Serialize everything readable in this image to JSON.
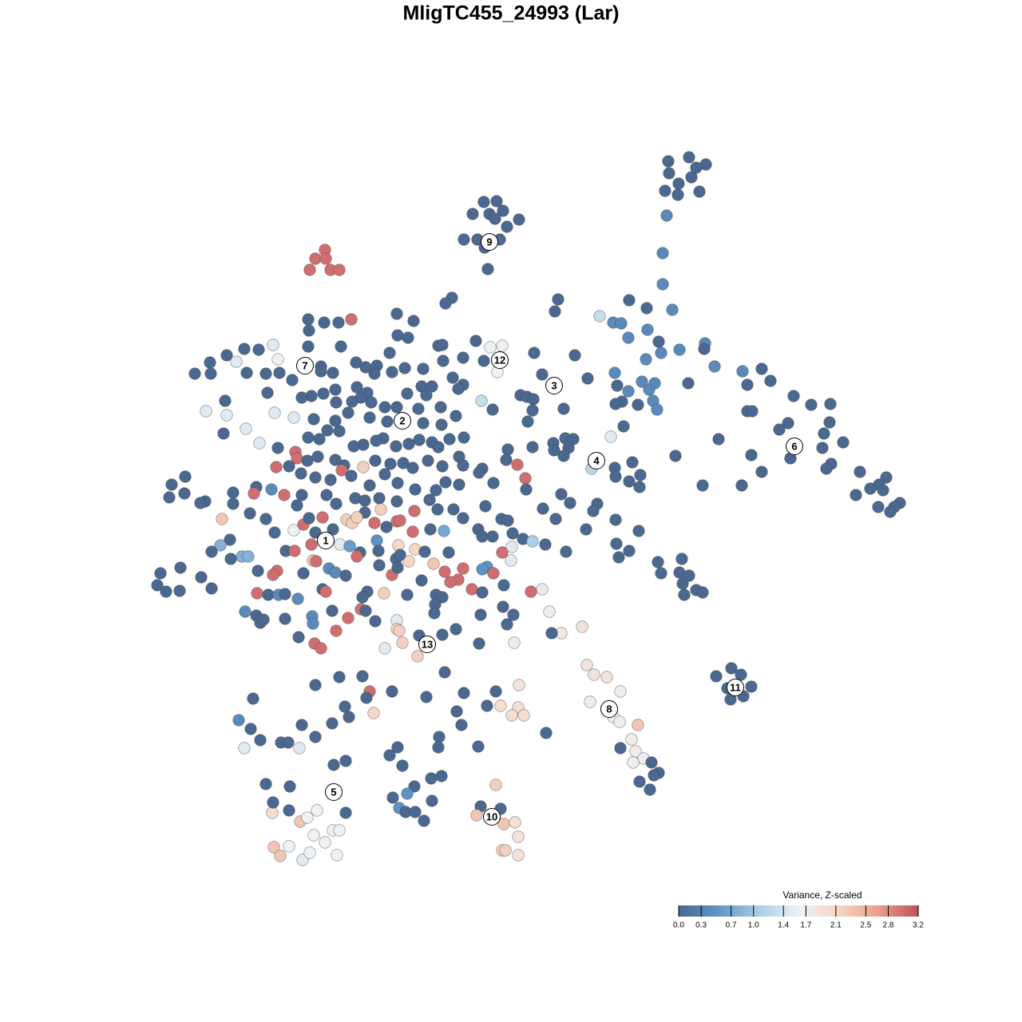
{
  "chart_data": {
    "type": "scatter",
    "title": "MligTC455_24993 (Lar)",
    "x": [
      837,
      863,
      884,
      872,
      838,
      866,
      850,
      833,
      876,
      849,
      835,
      830,
      830,
      606,
      622,
      613,
      592,
      630,
      620,
      650,
      635,
      581,
      598,
      626,
      607,
      611,
      407,
      395,
      408,
      388,
      414,
      425,
      699,
      695,
      566,
      558,
      751,
      768,
      778,
      788,
      810,
      842,
      811,
      787,
      825,
      828,
      851,
      883,
      882,
      809,
      770,
      895,
      930,
      954,
      965,
      936,
      862,
      804,
      820,
      813,
      773,
      787,
      818,
      823,
      779,
      771,
      799,
      994,
      1016,
      1040,
      936,
      942,
      987,
      976,
      1039,
      1032,
      1056,
      1030,
      990,
      941,
      846,
      900,
      880,
      929,
      954,
      1041,
      1035,
      1077,
      1110,
      1101,
      1090,
      1072,
      1106,
      1127,
      1120,
      1115,
      1100,
      765,
      781,
      720,
      736,
      708,
      718,
      693,
      712,
      706,
      741,
      792,
      770,
      771,
      788,
      802,
      801,
      748,
      743,
      714,
      703,
      680,
      696,
      771,
      734,
      800,
      772,
      788,
      775,
      709,
      824,
      854,
      828,
      851,
      863,
      855,
      872,
      880,
      857,
      916,
      897,
      928,
      911,
      941,
      931,
      915,
      735,
      744,
      760,
      777,
      739,
      768,
      776,
      799,
      791,
      796,
      777,
      806,
      793,
      816,
      825,
      819,
      801,
      814,
      729,
      703,
      688,
      679,
      691,
      644,
      650,
      627,
      649,
      656,
      641,
      621,
      610,
      684,
      621,
      602,
      627,
      597,
      631,
      645,
      649,
      629,
      633,
      649,
      341,
      362,
      376,
      385,
      397,
      433,
      417,
      425,
      393,
      407,
      343,
      362,
      351,
      379,
      388,
      422,
      342,
      333,
      363,
      418,
      433,
      352,
      361,
      326,
      314,
      299,
      306,
      317,
      375,
      395,
      378,
      416,
      437,
      432,
      395,
      425,
      454,
      463,
      468,
      459,
      491,
      534,
      557,
      581,
      572,
      578,
      550,
      549,
      599,
      498,
      488,
      504,
      540,
      553,
      519,
      492,
      510,
      541,
      500,
      508,
      520,
      531,
      386,
      406,
      424,
      440,
      387,
      497,
      518,
      498,
      511,
      549,
      554,
      596,
      614,
      629,
      669,
      580,
      606,
      623,
      555,
      488,
      427,
      386,
      342,
      324,
      306,
      284,
      263,
      296,
      348,
      350,
      309,
      333,
      244,
      264,
      366,
      402,
      402,
      417,
      446,
      458,
      472,
      469,
      491,
      507,
      530,
      567,
      580,
      574,
      603,
      617,
      652,
      660,
      668,
      679,
      661,
      706,
      667,
      552,
      571,
      528,
      541,
      534,
      420,
      447,
      460,
      465,
      482,
      497,
      510,
      524,
      452,
      441,
      421,
      405,
      390,
      378,
      335,
      282,
      258,
      284,
      344,
      368,
      308,
      280,
      325,
      393,
      420,
      436,
      463,
      485,
      530,
      553,
      581,
      563,
      541,
      549,
      525,
      512,
      496,
      480,
      471,
      455,
      443,
      425,
      410,
      400,
      386,
      370,
      372,
      348,
      385,
      398,
      420,
      431,
      428,
      455,
      470,
      489,
      505,
      517,
      536,
      554,
      575,
      580,
      604,
      636,
      634,
      648,
      658,
      667,
      694,
      618,
      346,
      362,
      377,
      395,
      414,
      440,
      463,
      482,
      498,
      520,
      546,
      558,
      575,
      600,
      659,
      215,
      232,
      212,
      231,
      257,
      251,
      292,
      292,
      321,
      318,
      340,
      356,
      378,
      372,
      409,
      421,
      445,
      457,
      475,
      497,
      538,
      548,
      568,
      608,
      628,
      636,
      580,
      519,
      477,
      457,
      434,
      441,
      447,
      469,
      484,
      497,
      501,
      517,
      539,
      556,
      599,
      604,
      617,
      642,
      655,
      667,
      683,
      641,
      640,
      629,
      610,
      604,
      618,
      580,
      574,
      557,
      564,
      543,
      528,
      512,
      520,
      499,
      532,
      562,
      591,
      604,
      631,
      665,
      278,
      313,
      333,
      344,
      368,
      380,
      387,
      404,
      417,
      395,
      358,
      390,
      426,
      438,
      451,
      472,
      474,
      447,
      475,
      491,
      496,
      501,
      498,
      392,
      396,
      412,
      420,
      433,
      380,
      369,
      347,
      342,
      323,
      288,
      276,
      303,
      311,
      289,
      265,
      226,
      201,
      197,
      208,
      225,
      252,
      265,
      322,
      336,
      349,
      357,
      373,
      404,
      408,
      460,
      454,
      481,
      510,
      546,
      554,
      545,
      544,
      307,
      321,
      326,
      330,
      357,
      391,
      392,
      416,
      436,
      452,
      458,
      470,
      497,
      497,
      500,
      525,
      504,
      482,
      523,
      374,
      394,
      402,
      421,
      554,
      602,
      630,
      643,
      635,
      600,
      571
    ],
    "y": [
      202,
      197,
      206,
      210,
      217,
      222,
      230,
      239,
      240,
      244,
      270,
      317,
      356,
      253,
      252,
      268,
      268,
      264,
      274,
      275,
      284,
      300,
      300,
      300,
      310,
      337,
      313,
      324,
      324,
      338,
      338,
      338,
      375,
      390,
      373,
      380,
      396,
      404,
      405,
      376,
      386,
      388,
      413,
      423,
      428,
      442,
      438,
      430,
      437,
      450,
      467,
      459,
      465,
      462,
      477,
      482,
      480,
      478,
      480,
      488,
      483,
      490,
      502,
      513,
      503,
      506,
      507,
      496,
      507,
      506,
      515,
      515,
      530,
      538,
      529,
      543,
      554,
      561,
      574,
      570,
      571,
      550,
      608,
      608,
      591,
      581,
      587,
      591,
      598,
      607,
      612,
      620,
      614,
      630,
      635,
      641,
      635,
      547,
      534,
      445,
      474,
      549,
      550,
      555,
      561,
      571,
      587,
      579,
      586,
      597,
      603,
      595,
      610,
      631,
      640,
      630,
      619,
      637,
      650,
      651,
      663,
      665,
      681,
      690,
      698,
      691,
      704,
      700,
      718,
      717,
      721,
      731,
      739,
      742,
      745,
      837,
      847,
      845,
      862,
      860,
      872,
      876,
      833,
      845,
      848,
      866,
      879,
      898,
      904,
      908,
      926,
      941,
      937,
      950,
      955,
      955,
      968,
      971,
      979,
      989,
      785,
      793,
      766,
      738,
      793,
      805,
      858,
      884,
      886,
      896,
      896,
      866,
      884,
      918,
      983,
      1010,
      1013,
      1021,
      1032,
      1030,
      1048,
      1065,
      1065,
      1071,
      1018,
      1015,
      1029,
      1024,
      1015,
      1018,
      1040,
      1040,
      1046,
      1055,
      1061,
      1060,
      1072,
      1077,
      1068,
      1071,
      1005,
      982,
      985,
      958,
      953,
      930,
      930,
      927,
      913,
      902,
      937,
      875,
      937,
      923,
      908,
      906,
      898,
      885,
      858,
      848,
      847,
      866,
      893,
      874,
      866,
      873,
      842,
      868,
      891,
      908,
      923,
      936,
      935,
      936,
      946,
      959,
      975,
      972,
      985,
      999,
      994,
      1003,
      1012,
      1017,
      1017,
      1028,
      400,
      404,
      404,
      400,
      414,
      393,
      402,
      420,
      423,
      433,
      432,
      427,
      435,
      433,
      442,
      448,
      452,
      466,
      452,
      442,
      434,
      434,
      432,
      438,
      437,
      445,
      454,
      453,
      450,
      467,
      467,
      468,
      468,
      468,
      476,
      459,
      465,
      467,
      454,
      460,
      458,
      468,
      466,
      461,
      462,
      473,
      482,
      487,
      502,
      513,
      495,
      497,
      500,
      469,
      528,
      512,
      514,
      510,
      521,
      484,
      484,
      495,
      488,
      485,
      492,
      504,
      510,
      510,
      493,
      512,
      498,
      503,
      504,
      493,
      496,
      498,
      492,
      502,
      515,
      520,
      517,
      523,
      537,
      543,
      555,
      525,
      527,
      517,
      523,
      528,
      530,
      532,
      548,
      550,
      554,
      560,
      551,
      556,
      559,
      549,
      552,
      557,
      559,
      540,
      539,
      550,
      548,
      566,
      574,
      561,
      577,
      572,
      576,
      583,
      589,
      585,
      577,
      581,
      580,
      586,
      577,
      584,
      572,
      583,
      587,
      563,
      576,
      582,
      599,
      560,
      564,
      605,
      585,
      584,
      593,
      598,
      601,
      596,
      608,
      594,
      605,
      613,
      614,
      604,
      607,
      592,
      613,
      607,
      597,
      623,
      618,
      628,
      630,
      617,
      631,
      610,
      618,
      613,
      620,
      620,
      633,
      620,
      631,
      624,
      627,
      624,
      628,
      626,
      638,
      638,
      634,
      650,
      652,
      649,
      640,
      638,
      642,
      651,
      655,
      648,
      655,
      660,
      653,
      652,
      666,
      663,
      665,
      663,
      672,
      672,
      668,
      675,
      678,
      682,
      685,
      702,
      692,
      710,
      713,
      718,
      712,
      726,
      716,
      729,
      706,
      727,
      703,
      688,
      683,
      691,
      692,
      738,
      742,
      733,
      741,
      650,
      643,
      650,
      667,
      664,
      657,
      649,
      648,
      663,
      667,
      690,
      682,
      682,
      684,
      692,
      677,
      690,
      697,
      708,
      720,
      700,
      695,
      711,
      702,
      703,
      712,
      717,
      721,
      718,
      690,
      715,
      720,
      715,
      676,
      683,
      697,
      697,
      700,
      691,
      711,
      718,
      733,
      741,
      740,
      723,
      737,
      743,
      745,
      745,
      744,
      750,
      738,
      741,
      741,
      748,
      743,
      745,
      745,
      748,
      757,
      768,
      766,
      771,
      780,
      776,
      775,
      772,
      781,
      765,
      774,
      763,
      765,
      778,
      777,
      788,
      790,
      796,
      805,
      812,
      822,
      798,
      806,
      812,
      790,
      795,
      770,
      760,
      770,
      782,
      806,
      788
    ],
    "values": [
      0,
      0,
      0,
      0,
      0,
      0,
      0,
      0,
      0,
      0,
      0.4,
      0.4,
      0.4,
      0,
      0,
      0,
      0,
      0,
      0,
      0,
      0,
      0,
      0,
      0,
      0,
      0,
      3,
      3,
      3,
      3,
      3,
      3,
      0,
      0,
      0,
      0,
      1.3,
      0.4,
      0.4,
      0,
      0,
      0.4,
      0.4,
      0.4,
      0,
      0.4,
      0.4,
      0.4,
      0,
      0.4,
      0.4,
      0.4,
      0.4,
      0,
      0,
      0,
      0,
      0.4,
      0.4,
      0.4,
      0,
      0.4,
      0.4,
      0.4,
      0,
      0,
      0,
      0,
      0,
      0,
      0,
      0,
      0,
      0,
      0,
      0,
      0,
      0,
      0,
      0,
      0,
      0,
      0,
      0,
      0,
      0,
      0,
      0,
      0,
      0,
      0,
      0,
      0,
      0,
      0,
      0,
      0,
      1.5,
      0,
      0,
      0,
      0,
      0,
      0,
      0,
      0,
      1.2,
      0,
      0,
      0,
      0,
      0,
      0,
      0,
      0,
      0,
      0,
      0,
      0,
      0,
      0,
      0,
      0,
      0,
      0,
      0,
      0,
      0,
      0,
      0,
      0,
      0,
      0,
      0,
      0,
      0,
      0,
      0,
      0,
      0,
      0,
      0,
      1.9,
      1.9,
      1.9,
      1.7,
      1.7,
      1.7,
      1.7,
      2.3,
      1.7,
      1.7,
      0,
      1.7,
      1.7,
      0,
      0,
      0,
      0,
      0,
      1.9,
      1.8,
      1.7,
      1.5,
      0,
      1.7,
      1.9,
      2,
      2,
      2,
      2,
      0,
      0,
      0,
      2.2,
      0,
      0,
      2.3,
      2.3,
      2,
      1.9,
      2.2,
      2.2,
      1.9,
      2,
      0,
      2.3,
      1.6,
      1.6,
      0,
      1.6,
      1.6,
      1.6,
      1.6,
      2.3,
      1.6,
      2.3,
      1.5,
      1.6,
      1.6,
      0,
      0,
      0,
      0,
      0,
      0,
      0,
      0,
      0,
      0.4,
      1.5,
      0,
      1.5,
      0,
      0,
      0,
      0,
      0,
      0,
      0,
      0,
      3,
      2.1,
      0,
      0,
      0,
      0,
      0,
      0,
      0,
      0,
      0,
      0,
      0,
      0,
      0,
      0,
      0,
      0,
      0,
      0.5,
      0,
      0.5,
      0,
      0,
      0,
      0,
      0,
      0,
      3,
      0,
      0,
      0,
      0,
      0,
      0,
      0,
      0,
      1.6,
      1.6,
      0,
      0,
      0,
      1.6,
      0,
      0,
      0,
      0,
      1.5,
      0,
      0,
      0,
      0,
      1.5,
      1.6,
      0,
      0,
      0,
      0,
      0,
      0,
      0,
      0,
      0,
      0,
      0,
      0,
      0,
      0,
      0,
      0,
      0,
      0,
      0,
      1.3,
      0,
      0,
      0,
      0,
      0,
      0,
      0,
      0,
      0,
      0,
      0,
      0,
      0,
      0,
      0,
      0,
      0,
      0,
      0,
      0,
      0,
      0,
      0,
      0,
      0,
      0,
      0,
      0,
      0,
      1.5,
      1.5,
      1.5,
      1.5,
      1.5,
      0,
      1.5,
      0,
      0,
      0,
      0,
      0,
      0,
      0,
      0,
      0,
      0,
      0,
      0,
      0,
      0,
      0,
      0,
      0,
      0,
      0,
      0,
      0,
      0,
      3,
      3,
      0,
      0,
      0,
      0,
      0,
      3,
      2.2,
      0,
      0,
      0,
      0,
      0,
      0,
      0,
      0,
      0,
      0,
      0,
      3,
      3,
      0,
      0,
      0,
      3,
      0,
      0,
      0,
      0,
      0,
      0,
      0,
      0,
      0,
      0,
      0,
      0,
      0,
      0,
      0,
      0,
      0,
      0,
      0,
      0,
      0,
      0,
      0,
      3,
      0.4,
      3,
      0,
      0,
      0,
      0,
      0,
      0,
      0,
      0,
      0,
      0,
      0,
      0,
      0,
      0,
      0,
      3,
      2.2,
      0,
      2.2,
      2.2,
      2.2,
      3,
      0,
      3,
      3,
      3,
      0,
      0.7,
      0,
      0,
      0,
      0,
      0,
      1.1,
      0,
      1.5,
      1.5,
      3,
      0.5,
      0.5,
      3,
      3,
      3,
      3,
      3,
      2.3,
      0,
      2.1,
      2.1,
      2.1,
      0,
      0,
      3,
      0,
      0,
      3,
      2.3,
      0,
      0,
      0,
      1.6,
      3,
      0,
      3,
      0,
      0,
      0,
      3,
      1.5,
      0.6,
      0,
      0.5,
      0,
      3,
      0,
      3,
      0,
      0,
      0,
      2.3,
      3,
      0.4,
      0.4,
      0,
      0,
      3,
      3,
      3,
      0,
      0,
      0.8,
      0.8,
      0.8,
      0,
      0,
      0,
      0,
      0,
      0,
      0,
      0,
      0,
      3,
      0,
      0.4,
      0,
      0.4,
      0,
      3,
      0,
      0,
      2.2,
      0,
      0,
      0,
      0,
      0,
      0.4,
      0,
      0,
      0,
      0,
      0.4,
      0.4,
      0,
      3,
      3,
      0,
      0,
      1.5,
      2.1,
      2.2,
      0,
      2.2,
      1.5,
      2.2,
      0,
      3,
      3,
      3,
      0,
      0,
      0,
      0,
      0,
      0,
      0
    ],
    "xlim": [
      180,
      1140
    ],
    "ylim": [
      1090,
      180
    ],
    "annotations": [
      {
        "label": "1",
        "x": 408,
        "y": 677
      },
      {
        "label": "2",
        "x": 504,
        "y": 527
      },
      {
        "label": "3",
        "x": 694,
        "y": 483
      },
      {
        "label": "4",
        "x": 747,
        "y": 577
      },
      {
        "label": "5",
        "x": 418,
        "y": 992
      },
      {
        "label": "6",
        "x": 995,
        "y": 559
      },
      {
        "label": "7",
        "x": 382,
        "y": 458
      },
      {
        "label": "8",
        "x": 763,
        "y": 888
      },
      {
        "label": "9",
        "x": 613,
        "y": 303
      },
      {
        "label": "10",
        "x": 616,
        "y": 1023
      },
      {
        "label": "11",
        "x": 921,
        "y": 861
      },
      {
        "label": "12",
        "x": 626,
        "y": 451
      },
      {
        "label": "13",
        "x": 535,
        "y": 807
      }
    ],
    "colorbar": {
      "title": "Variance, Z-scaled",
      "lim": [
        0,
        3.2
      ],
      "ticks": [
        {
          "value": 0,
          "label": "0.0"
        },
        0.3,
        0.7,
        {
          "value": 1,
          "label": "1.0"
        },
        1.4,
        1.7,
        2.1,
        2.5,
        2.8,
        3.2
      ],
      "colors": [
        "#4b6890",
        "#5f95c8",
        "#a9cde2",
        "#eef1f4",
        "#f5d7c4",
        "#e89f8a",
        "#c1505f"
      ]
    }
  }
}
